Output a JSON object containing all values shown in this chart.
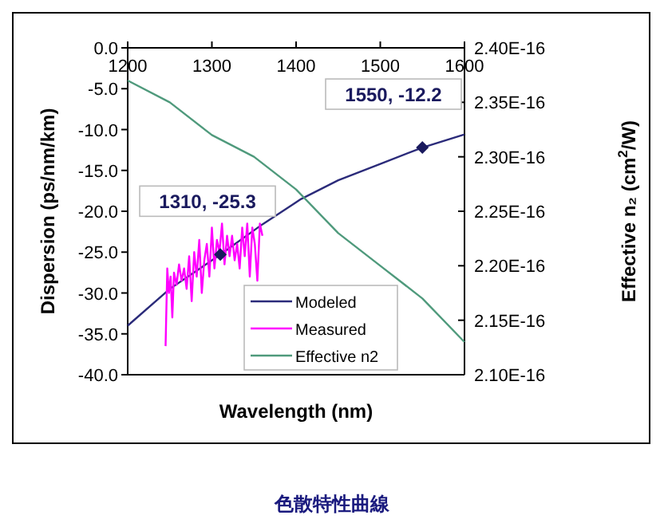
{
  "chart_data": {
    "type": "line",
    "xlabel": "Wavelength (nm)",
    "ylabel": "Dispersion (ps/nm/km)",
    "y2label": "Effective n₂ (cm$^{2}$/W)",
    "xlim": [
      1200,
      1600
    ],
    "xticks": [
      1200,
      1300,
      1400,
      1500,
      1600
    ],
    "ylim": [
      -40,
      0
    ],
    "yticks": [
      {
        "value": 0,
        "label": "0.0"
      },
      {
        "value": -5,
        "label": "-5.0"
      },
      {
        "value": -10,
        "label": "-10.0"
      },
      {
        "value": -15,
        "label": "-15.0"
      },
      {
        "value": -20,
        "label": "-20.0"
      },
      {
        "value": -25,
        "label": "-25.0"
      },
      {
        "value": -30,
        "label": "-30.0"
      },
      {
        "value": -35,
        "label": "-35.0"
      },
      {
        "value": -40,
        "label": "-40.0"
      }
    ],
    "y2lim": [
      2.1e-16,
      2.4e-16
    ],
    "y2ticks": [
      {
        "value": 2.1e-16,
        "label": "2.10E-16"
      },
      {
        "value": 2.15e-16,
        "label": "2.15E-16"
      },
      {
        "value": 2.2e-16,
        "label": "2.20E-16"
      },
      {
        "value": 2.25e-16,
        "label": "2.25E-16"
      },
      {
        "value": 2.3e-16,
        "label": "2.30E-16"
      },
      {
        "value": 2.35e-16,
        "label": "2.35E-16"
      },
      {
        "value": 2.4e-16,
        "label": "2.40E-16"
      }
    ],
    "grid": false,
    "legend": "bottom right",
    "marker": "none",
    "line_style": "solid",
    "series": [
      {
        "name": "Modeled",
        "color": "#2b2b7a",
        "x": [
          1200,
          1250,
          1310,
          1360,
          1406,
          1450,
          1500,
          1550,
          1600
        ],
        "values": [
          -34,
          -29.5,
          -25.3,
          -21.6,
          -18.5,
          -16.2,
          -14.2,
          -12.2,
          -10.6
        ]
      },
      {
        "name": "Measured",
        "color": "#ff00ff",
        "x": [
          1245,
          1247,
          1249,
          1251,
          1253,
          1255,
          1258,
          1261,
          1264,
          1267,
          1270,
          1273,
          1276,
          1279,
          1282,
          1285,
          1288,
          1291,
          1294,
          1297,
          1300,
          1303,
          1306,
          1309,
          1312,
          1315,
          1318,
          1321,
          1324,
          1327,
          1330,
          1333,
          1336,
          1339,
          1342,
          1345,
          1348,
          1351,
          1354,
          1357,
          1360
        ],
        "values": [
          -36.5,
          -27,
          -30,
          -28,
          -33,
          -27.5,
          -29,
          -26.5,
          -28.5,
          -27,
          -29.5,
          -25.5,
          -31,
          -25,
          -28,
          -23.5,
          -30,
          -26,
          -24,
          -28,
          -22,
          -27,
          -23.5,
          -25,
          -21.5,
          -26.5,
          -23,
          -25.5,
          -23,
          -26,
          -24,
          -27,
          -22,
          -25.5,
          -21.5,
          -28,
          -22,
          -24,
          -28.5,
          -21.5,
          -23
        ]
      },
      {
        "name": "Effective n2",
        "color": "#4f9a7c",
        "axis": "y2",
        "x": [
          1200,
          1250,
          1300,
          1350,
          1400,
          1450,
          1500,
          1550,
          1600
        ],
        "values": [
          2.37e-16,
          2.35e-16,
          2.32e-16,
          2.3e-16,
          2.27e-16,
          2.23e-16,
          2.2e-16,
          2.17e-16,
          2.13e-16
        ]
      }
    ],
    "annotations": [
      {
        "text": "1310, -25.3",
        "x": 1310,
        "y": -25.3
      },
      {
        "text": "1550, -12.2",
        "x": 1550,
        "y": -12.2
      },
      "色散特性曲線"
    ]
  }
}
